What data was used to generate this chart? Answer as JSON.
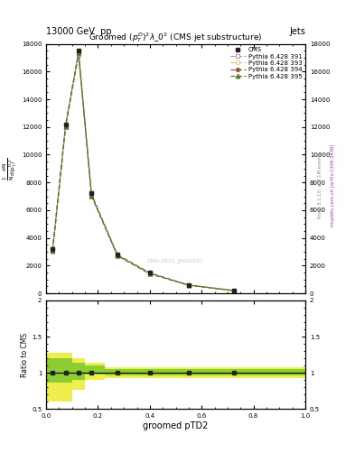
{
  "header_left": "13000 GeV  pp",
  "header_right": "Jets",
  "plot_title": "Groomed $(p_T^D)^2\\lambda\\_0^2$ (CMS jet substructure)",
  "xlabel": "groomed pTD2",
  "ylabel_ratio": "Ratio to CMS",
  "watermark": "CMS-2021_JJN20187",
  "right_text1": "Rivet 3.1.10; ≥ 3.1M events",
  "right_text2": "mcplots.cern.ch [arXiv:1306.3436]",
  "x_data": [
    0.025,
    0.075,
    0.125,
    0.175,
    0.275,
    0.4,
    0.55,
    0.725
  ],
  "cms_y": [
    3200,
    12200,
    17500,
    7200,
    2800,
    1500,
    600,
    200
  ],
  "p391_y": [
    3100,
    12000,
    17200,
    7000,
    2700,
    1400,
    580,
    190
  ],
  "p393_y": [
    3150,
    12100,
    17300,
    7100,
    2750,
    1450,
    590,
    195
  ],
  "p394_y": [
    3180,
    12150,
    17350,
    7150,
    2780,
    1470,
    595,
    198
  ],
  "p395_y": [
    3050,
    12050,
    17400,
    7050,
    2720,
    1420,
    585,
    192
  ],
  "ylim": [
    0,
    18000
  ],
  "xlim": [
    0,
    1.0
  ],
  "ratio_ylim": [
    0.5,
    2.0
  ],
  "ytick_vals": [
    0,
    2000,
    4000,
    6000,
    8000,
    10000,
    12000,
    14000,
    16000,
    18000
  ],
  "ytick_labs": [
    "0",
    "2000",
    "4000",
    "6000",
    "8000",
    "10000",
    "12000",
    "14000",
    "16000",
    "18000"
  ],
  "cms_color": "#222222",
  "p391_color": "#cc88aa",
  "p393_color": "#cccc77",
  "p394_color": "#8B5e3c",
  "p395_color": "#557722",
  "band_yellow": "#eeee44",
  "band_green": "#88cc33",
  "step_edges": [
    0.0,
    0.05,
    0.1,
    0.15,
    0.225,
    0.325,
    0.475,
    0.635,
    1.0
  ],
  "band_yellow_upper": [
    1.28,
    1.28,
    1.2,
    1.14,
    1.08,
    1.08,
    1.08,
    1.08,
    1.08
  ],
  "band_yellow_lower": [
    0.6,
    0.6,
    0.76,
    0.9,
    0.93,
    0.93,
    0.93,
    0.93,
    0.93
  ],
  "band_green_upper": [
    1.2,
    1.2,
    1.14,
    1.1,
    1.05,
    1.05,
    1.05,
    1.05,
    1.05
  ],
  "band_green_lower": [
    0.86,
    0.86,
    0.9,
    0.97,
    0.96,
    0.96,
    0.96,
    0.96,
    0.96
  ]
}
